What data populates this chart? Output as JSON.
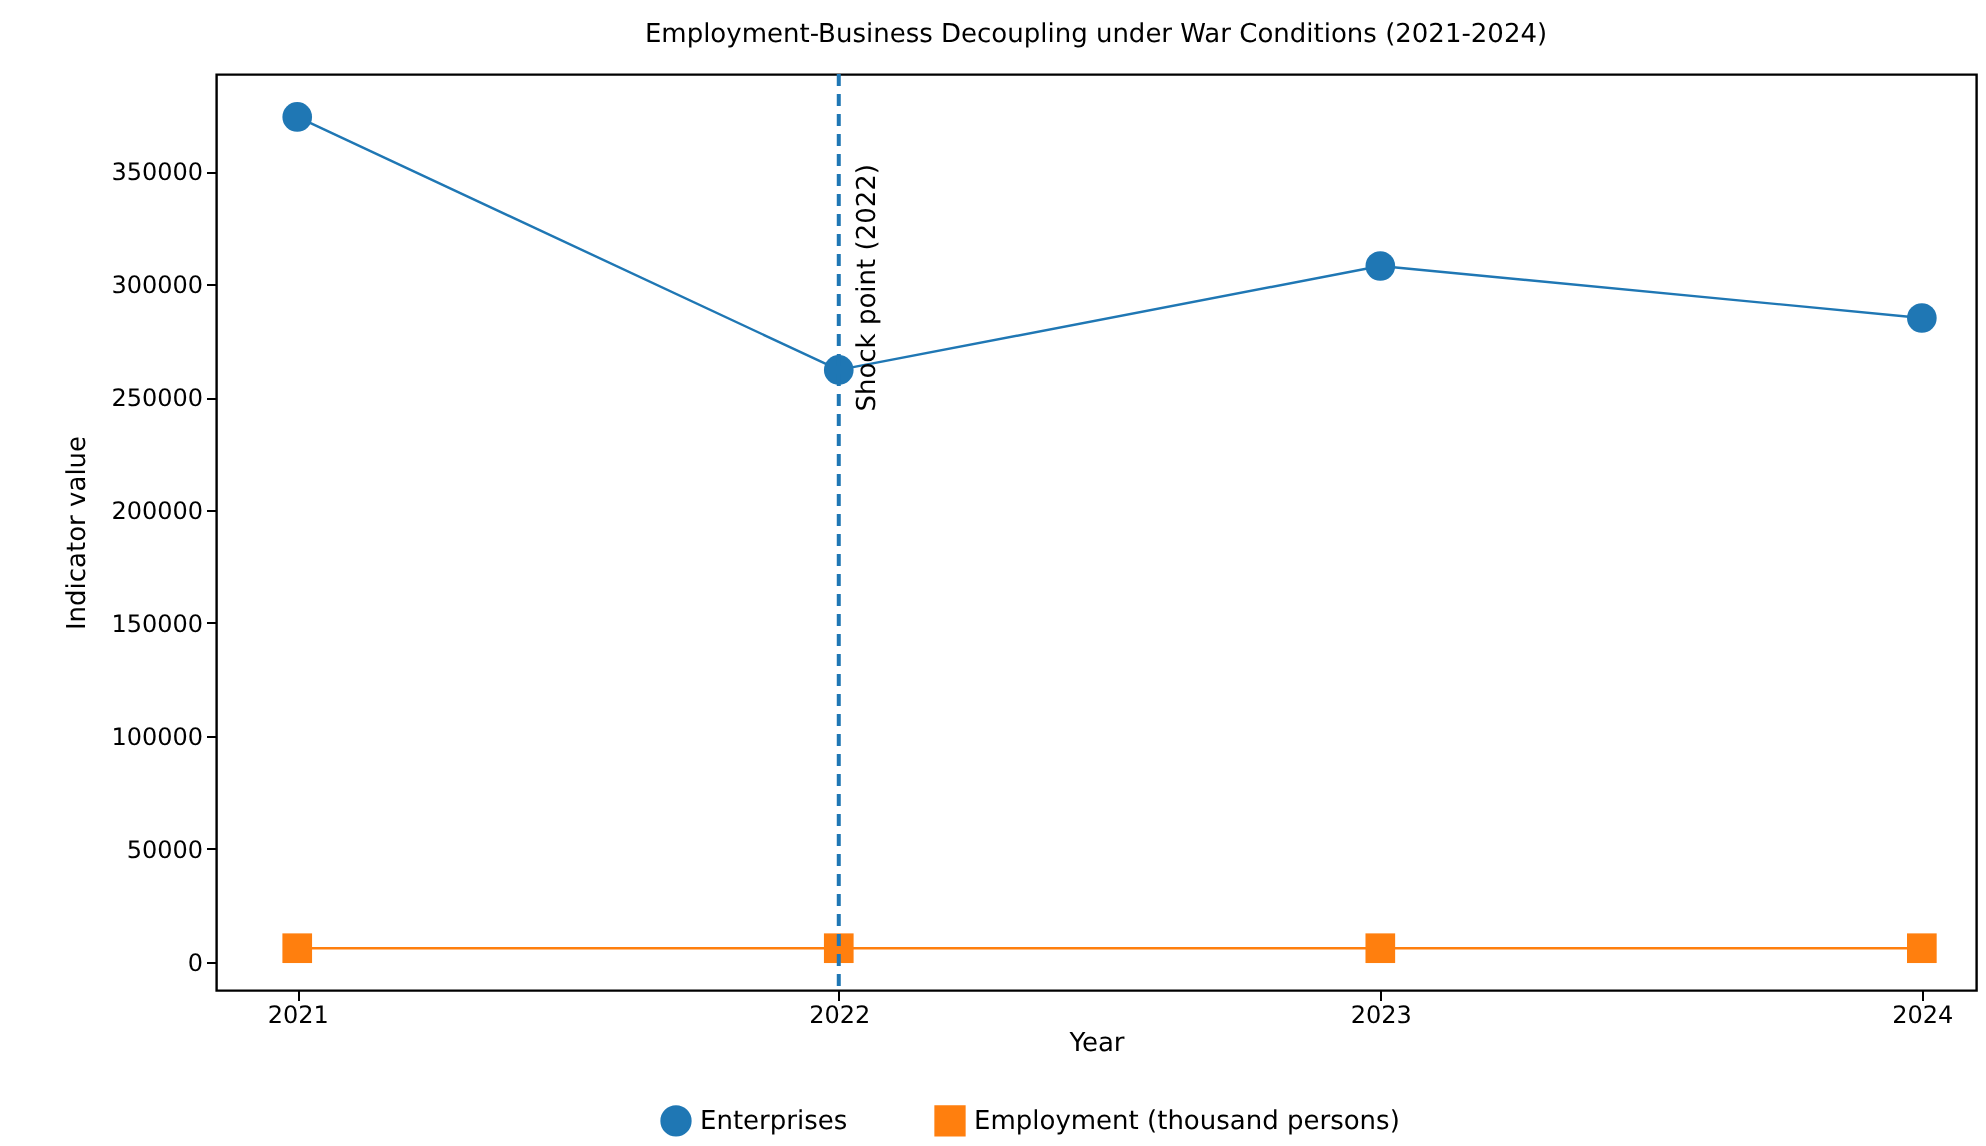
{
  "chart_data": {
    "type": "line",
    "title": "Employment-Business Decoupling under War Conditions (2021-2024)",
    "xlabel": "Year",
    "ylabel": "Indicator value",
    "x": [
      2021,
      2022,
      2023,
      2024
    ],
    "series": [
      {
        "name": "Enterprises",
        "color": "#1f77b4",
        "marker": "circle",
        "values": [
          374000,
          262000,
          308000,
          285000
        ]
      },
      {
        "name": "Employment (thousand persons)",
        "color": "#ff7f0e",
        "marker": "square",
        "values": [
          6000,
          6000,
          6000,
          6000
        ]
      }
    ],
    "xlim": [
      2020.85,
      2024.1
    ],
    "xticks": [
      2021,
      2022,
      2023,
      2024
    ],
    "ylim": [
      -12500,
      393000
    ],
    "yticks": [
      0,
      50000,
      100000,
      150000,
      200000,
      250000,
      300000,
      350000
    ],
    "ref_lines": [
      {
        "axis": "x",
        "value": 2022,
        "label": "Shock point (2022)",
        "color": "#1f77b4",
        "line_style": "dashed"
      }
    ],
    "legend": "bottom",
    "grid": false,
    "line_style": "solid"
  }
}
